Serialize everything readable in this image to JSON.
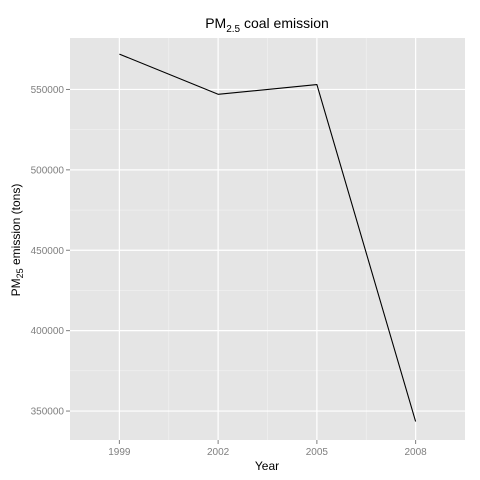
{
  "chart_data": {
    "type": "line",
    "title": {
      "prefix": "PM",
      "subscript": "2.5",
      "suffix": " coal emission"
    },
    "xlabel": "Year",
    "ylabel": {
      "prefix": "PM",
      "subscript": "25",
      "suffix": " emission (tons)"
    },
    "x": [
      1999,
      2002,
      2005,
      2008
    ],
    "x_tick_labels": [
      "1999",
      "2002",
      "2005",
      "2008"
    ],
    "y_tick_values": [
      350000,
      400000,
      450000,
      500000,
      550000
    ],
    "y_tick_labels": [
      "350000",
      "400000",
      "450000",
      "500000",
      "550000"
    ],
    "series": [
      {
        "values": [
          572000,
          547000,
          553000,
          343500
        ],
        "color": "#000000"
      }
    ],
    "xlim": [
      1997.5,
      2009.5
    ],
    "ylim": [
      332000,
      582000
    ],
    "grid": true,
    "panel_background": "#e5e5e5",
    "grid_color": "#ffffff",
    "tick_label_color": "#7f7f7f"
  }
}
